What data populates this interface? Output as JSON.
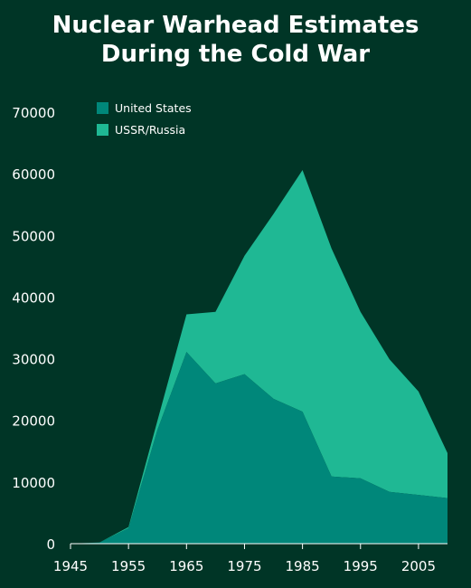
{
  "chart_data": {
    "type": "area",
    "stacked": true,
    "title_lines": [
      "Nuclear Warhead Estimates",
      "During the Cold War"
    ],
    "xlabel": "",
    "ylabel": "",
    "x": [
      1945,
      1950,
      1955,
      1960,
      1965,
      1970,
      1975,
      1980,
      1985,
      1990,
      1995,
      2000,
      2005,
      2010
    ],
    "x_ticks": [
      1945,
      1955,
      1965,
      1975,
      1985,
      1995,
      2005
    ],
    "y_ticks": [
      0,
      10000,
      20000,
      30000,
      40000,
      50000,
      60000,
      70000
    ],
    "xlim": [
      1945,
      2010
    ],
    "ylim": [
      0,
      70000
    ],
    "grid": false,
    "legend_position": "top-left",
    "series": [
      {
        "name": "United States",
        "color": "#00877a",
        "values": [
          0,
          200,
          2500,
          18500,
          31100,
          26000,
          27500,
          23500,
          21400,
          10900,
          10600,
          8400,
          7900,
          7400
        ]
      },
      {
        "name": "USSR/Russia",
        "color": "#1fb894",
        "values": [
          0,
          0,
          200,
          1500,
          6100,
          11600,
          19200,
          30000,
          39200,
          37000,
          27000,
          21500,
          16800,
          7300
        ]
      }
    ]
  }
}
